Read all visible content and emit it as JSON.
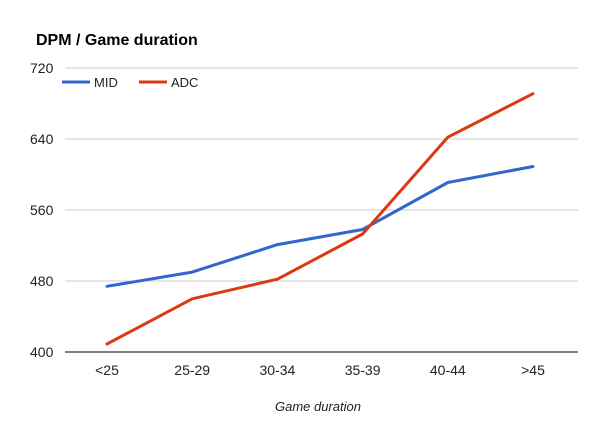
{
  "chart_data": {
    "type": "line",
    "title": "DPM / Game duration",
    "xlabel": "Game duration",
    "ylabel": "",
    "categories": [
      "<25",
      "25-29",
      "30-34",
      "35-39",
      "40-44",
      ">45"
    ],
    "ylim": [
      400,
      720
    ],
    "yticks": [
      "400",
      "480",
      "560",
      "640",
      "720"
    ],
    "grid": true,
    "legend_position": "top-left",
    "series": [
      {
        "name": "MID",
        "color": "#3366cc",
        "values": [
          474,
          490,
          521,
          538,
          591,
          609
        ]
      },
      {
        "name": "ADC",
        "color": "#dc3912",
        "values": [
          409,
          460,
          482,
          533,
          642,
          691
        ]
      }
    ]
  }
}
